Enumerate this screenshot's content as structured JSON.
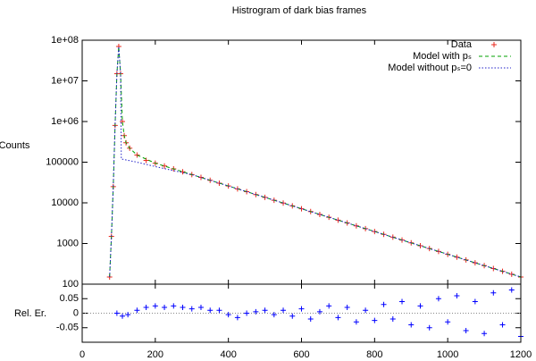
{
  "chart_data": [
    {
      "type": "line",
      "title": "Histrogram of dark bias frames",
      "ylabel": "Counts",
      "ylog": true,
      "xlim": [
        0,
        1200
      ],
      "ylim": [
        100,
        100000000
      ],
      "yticks": [
        {
          "value": 100000000,
          "label": "1e+08"
        },
        {
          "value": 10000000,
          "label": "1e+07"
        },
        {
          "value": 1000000,
          "label": "1e+06"
        },
        100000,
        10000,
        1000,
        100
      ],
      "legend": "top-right",
      "series": [
        {
          "name": "Data",
          "color": "#e8281e",
          "marker": "+",
          "x": [
            75,
            80,
            85,
            90,
            95,
            100,
            105,
            110,
            115,
            120,
            130,
            150,
            175,
            200,
            225,
            250,
            275,
            300,
            325,
            350,
            375,
            400,
            425,
            450,
            475,
            500,
            525,
            550,
            575,
            600,
            625,
            650,
            675,
            700,
            725,
            750,
            775,
            800,
            825,
            850,
            875,
            900,
            925,
            950,
            975,
            1000,
            1025,
            1050,
            1075,
            1100,
            1125,
            1150,
            1175,
            1200
          ],
          "values": [
            150,
            1500,
            25000,
            800000,
            15000000,
            70000000,
            15000000,
            1000000,
            450000,
            300000,
            220000,
            150000,
            111000,
            94400,
            80400,
            68400,
            58200,
            49500,
            42200,
            35900,
            30500,
            26000,
            22100,
            18800,
            16000,
            13600,
            11600,
            9890,
            8410,
            7160,
            6100,
            5190,
            4420,
            3760,
            3200,
            2720,
            2320,
            1970,
            1680,
            1430,
            1220,
            1040,
            881,
            750,
            638,
            543,
            462,
            394,
            335,
            285,
            243,
            207,
            176,
            150
          ]
        },
        {
          "name": "Model with pₛ",
          "color": "#00a000",
          "dash": "dashed",
          "x": [
            75,
            80,
            85,
            90,
            95,
            100,
            105,
            110,
            115,
            120,
            130,
            150,
            200,
            300,
            400,
            600,
            800,
            1000,
            1200
          ],
          "values": [
            150,
            1500,
            25000,
            800000,
            15000000,
            70000000,
            15000000,
            1000000,
            450000,
            300000,
            220000,
            150000,
            94400,
            49500,
            26000,
            7160,
            1970,
            543,
            150
          ]
        },
        {
          "name": "Model without pₛ=0",
          "color": "#2020c8",
          "dash": "dotted",
          "x": [
            75,
            80,
            85,
            90,
            95,
            100,
            105,
            107,
            150,
            200,
            250,
            300,
            400,
            600,
            800,
            1000,
            1200
          ],
          "values": [
            150,
            1500,
            25000,
            800000,
            15000000,
            70000000,
            15000000,
            120000,
            100000,
            78000,
            62000,
            49500,
            26000,
            7160,
            1970,
            543,
            150
          ]
        }
      ]
    },
    {
      "type": "scatter",
      "ylabel": "Rel. Er.",
      "xlim": [
        0,
        1200
      ],
      "ylim": [
        -0.1,
        0.1
      ],
      "xticks": [
        0,
        200,
        400,
        600,
        800,
        1000,
        1200
      ],
      "yticks": [
        0.05,
        0,
        -0.05
      ],
      "zero_line": true,
      "series": [
        {
          "color": "#0000ff",
          "marker": "+",
          "x": [
            95,
            110,
            125,
            150,
            175,
            200,
            225,
            250,
            275,
            300,
            325,
            350,
            375,
            400,
            425,
            450,
            475,
            500,
            525,
            550,
            575,
            600,
            625,
            650,
            675,
            700,
            725,
            750,
            775,
            800,
            825,
            850,
            875,
            900,
            925,
            950,
            975,
            1000,
            1025,
            1050,
            1075,
            1100,
            1125,
            1150,
            1175,
            1200
          ],
          "values": [
            0,
            -0.01,
            -0.005,
            0.01,
            0.02,
            0.025,
            0.02,
            0.025,
            0.02,
            0.015,
            0.02,
            0.01,
            0.01,
            -0.005,
            -0.015,
            0,
            0.005,
            0.01,
            -0.005,
            0.01,
            -0.01,
            0.015,
            -0.02,
            0.005,
            0.025,
            -0.015,
            0.02,
            -0.03,
            0.01,
            -0.025,
            0.03,
            -0.02,
            0.04,
            -0.04,
            0.025,
            -0.05,
            0.05,
            -0.03,
            0.06,
            -0.06,
            0.04,
            -0.07,
            0.07,
            -0.04,
            0.08,
            -0.08
          ]
        }
      ]
    }
  ]
}
